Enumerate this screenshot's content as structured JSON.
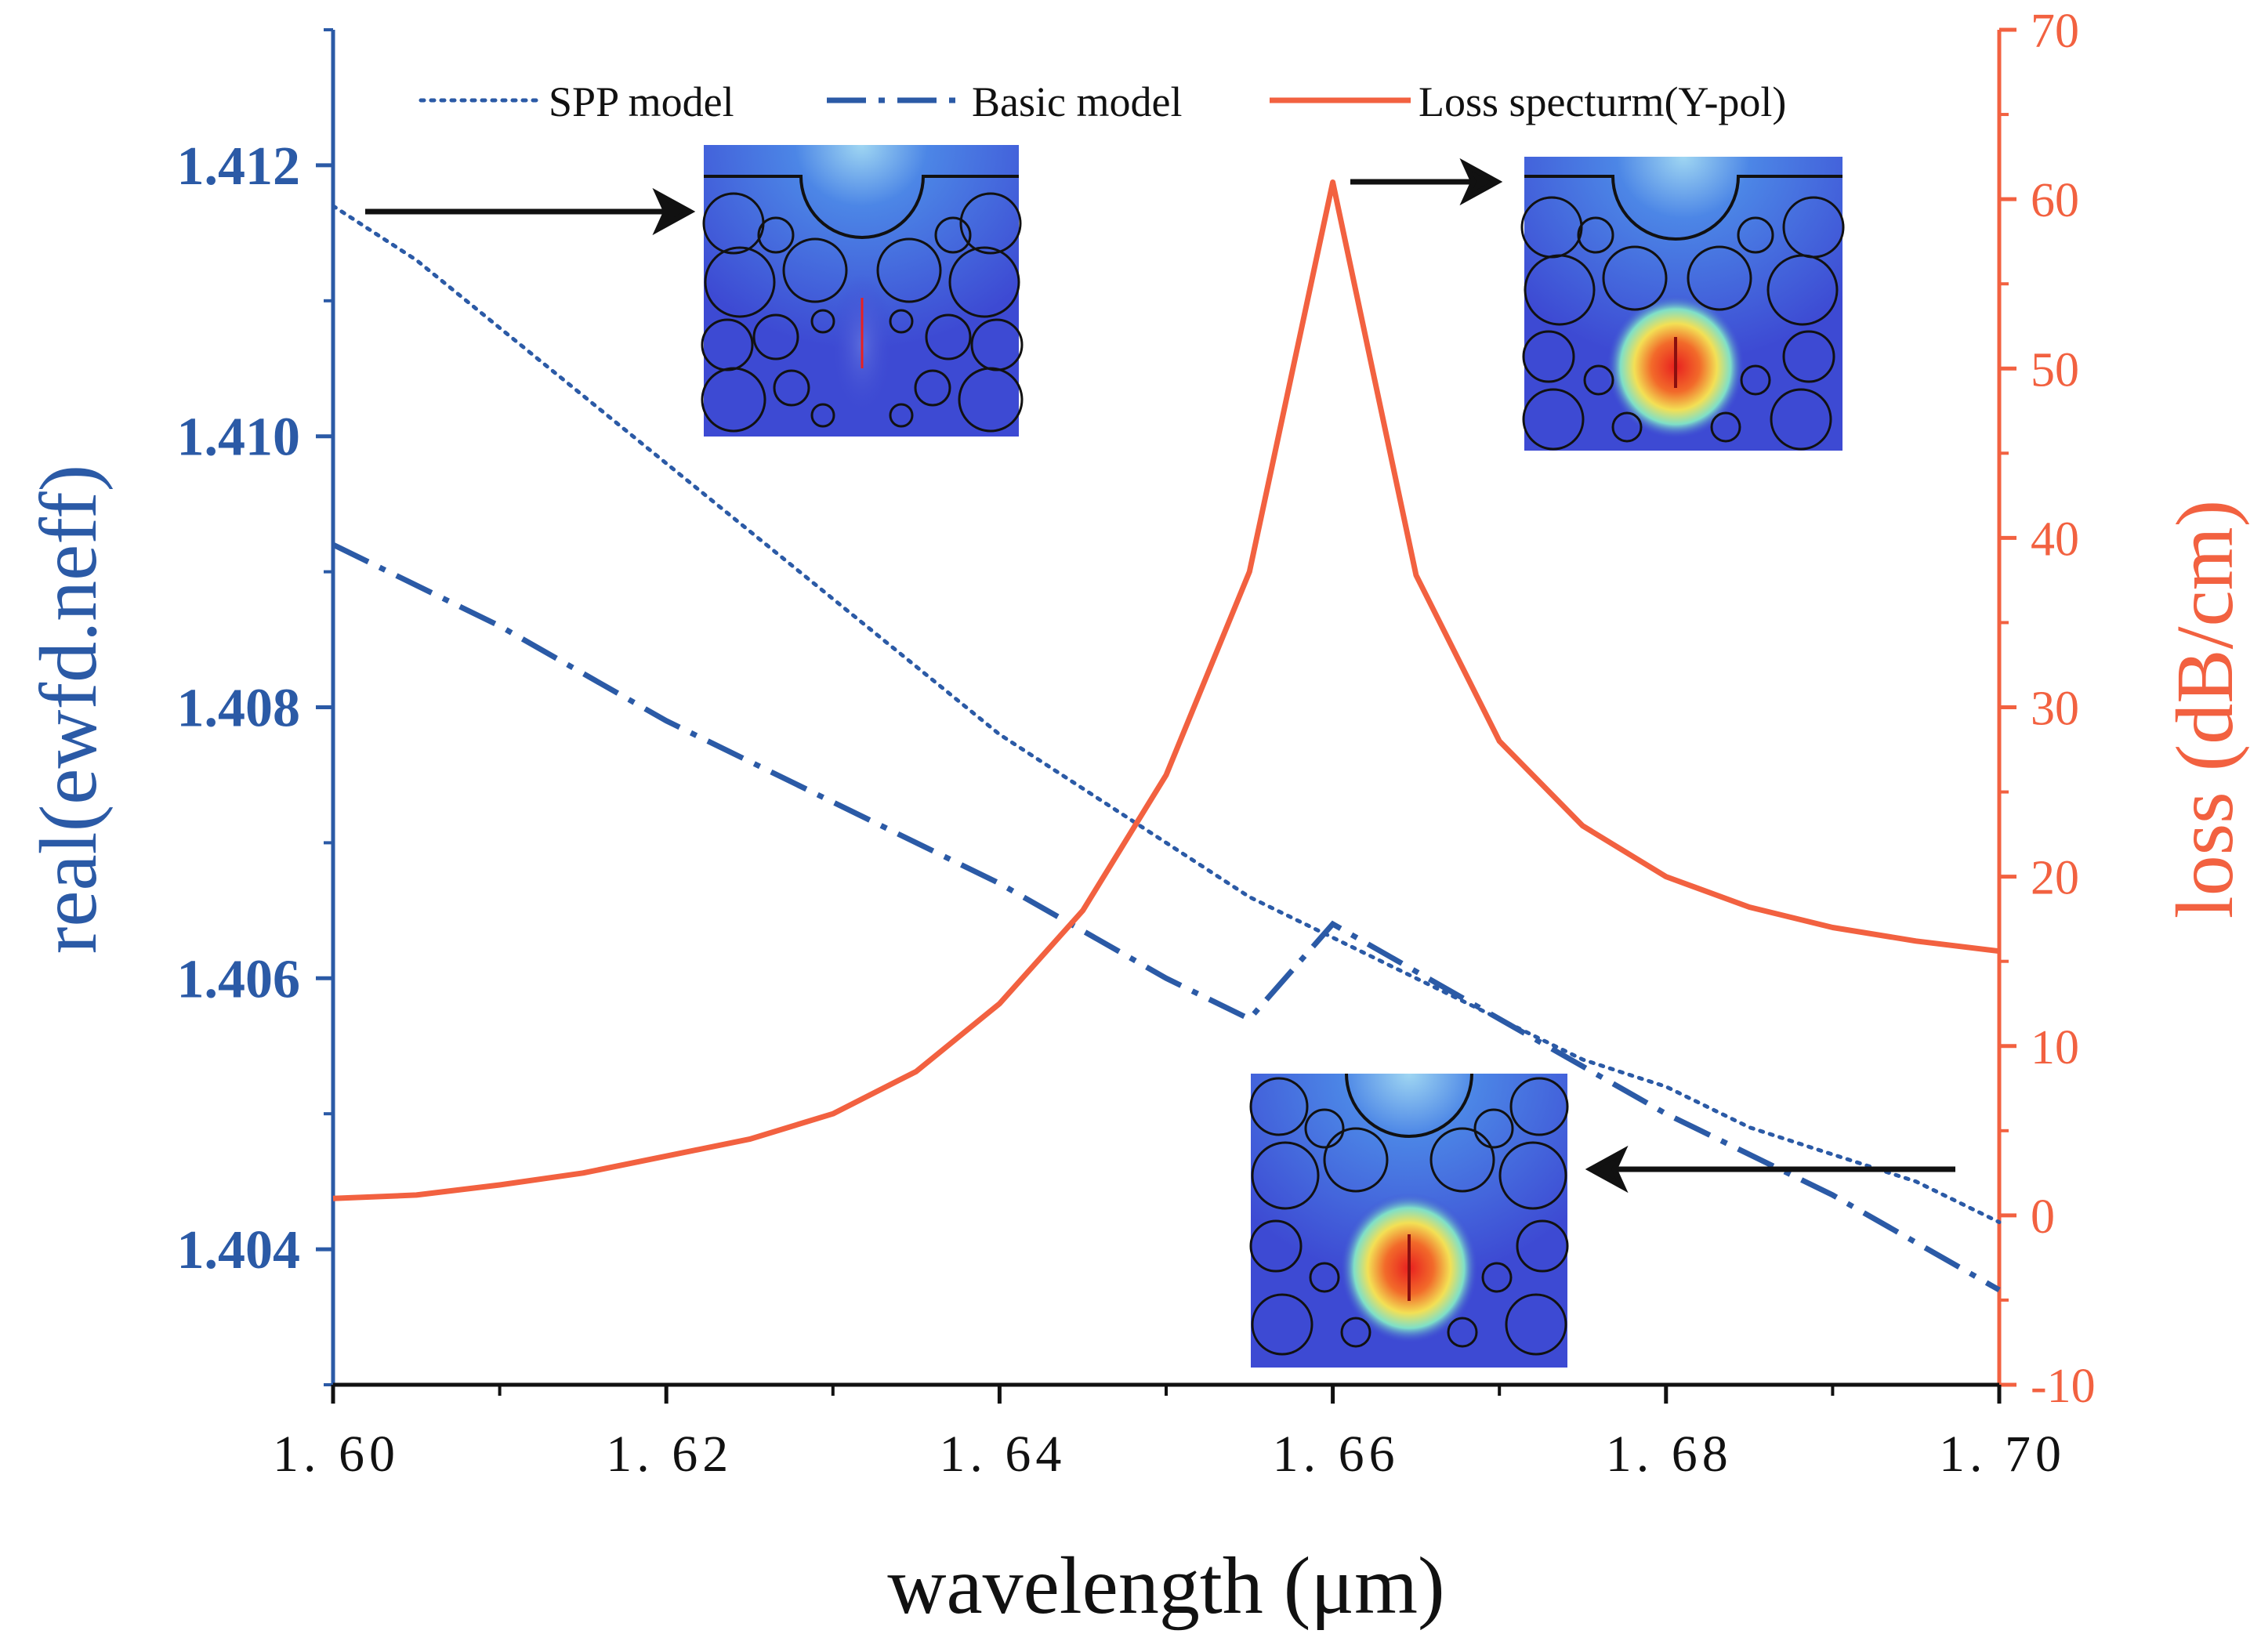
{
  "chart_data": {
    "type": "line",
    "title": "",
    "xlabel": "wavelength (μm)",
    "ylabel_left": "real(ewfd.neff)",
    "ylabel_right": "loss (dB/cm)",
    "xlim": [
      1.6,
      1.7
    ],
    "ylim_left": [
      1.403,
      1.413
    ],
    "ylim_right": [
      -10,
      70
    ],
    "x_ticks": [
      {
        "value": 1.6,
        "label": "1. 60"
      },
      {
        "value": 1.62,
        "label": "1. 62"
      },
      {
        "value": 1.64,
        "label": "1. 64"
      },
      {
        "value": 1.66,
        "label": "1. 66"
      },
      {
        "value": 1.68,
        "label": "1. 68"
      },
      {
        "value": 1.7,
        "label": "1. 70"
      }
    ],
    "y_left_ticks": [
      {
        "value": 1.404,
        "label": "1.404"
      },
      {
        "value": 1.406,
        "label": "1.406"
      },
      {
        "value": 1.408,
        "label": "1.408"
      },
      {
        "value": 1.41,
        "label": "1.410"
      },
      {
        "value": 1.412,
        "label": "1.412"
      }
    ],
    "y_right_ticks": [
      {
        "value": -10,
        "label": "-10"
      },
      {
        "value": 0,
        "label": "0"
      },
      {
        "value": 10,
        "label": "10"
      },
      {
        "value": 20,
        "label": "20"
      },
      {
        "value": 30,
        "label": "30"
      },
      {
        "value": 40,
        "label": "40"
      },
      {
        "value": 50,
        "label": "50"
      },
      {
        "value": 60,
        "label": "60"
      },
      {
        "value": 70,
        "label": "70"
      }
    ],
    "series": [
      {
        "name": "SPP model",
        "axis": "left",
        "style": "dotted",
        "color": "#2b5aa6",
        "x": [
          1.6,
          1.605,
          1.61,
          1.615,
          1.62,
          1.625,
          1.63,
          1.635,
          1.64,
          1.645,
          1.65,
          1.655,
          1.66,
          1.665,
          1.67,
          1.675,
          1.68,
          1.685,
          1.69,
          1.695,
          1.7
        ],
        "y": [
          1.4117,
          1.4113,
          1.4108,
          1.4103,
          1.4098,
          1.4093,
          1.4088,
          1.4083,
          1.4078,
          1.4074,
          1.407,
          1.4066,
          1.4063,
          1.406,
          1.4057,
          1.4054,
          1.4052,
          1.4049,
          1.4047,
          1.4045,
          1.4042
        ]
      },
      {
        "name": "Basic model",
        "axis": "left",
        "style": "dashdot",
        "color": "#2b5aa6",
        "x": [
          1.6,
          1.61,
          1.62,
          1.63,
          1.64,
          1.65,
          1.655,
          1.66,
          1.67,
          1.68,
          1.69,
          1.7
        ],
        "y": [
          1.4092,
          1.4086,
          1.4079,
          1.4073,
          1.4067,
          1.406,
          1.4057,
          1.4064,
          1.4057,
          1.405,
          1.4044,
          1.4037
        ]
      },
      {
        "name": "Loss specturm(Y-pol)",
        "axis": "right",
        "style": "solid",
        "color": "#f26140",
        "x": [
          1.6,
          1.605,
          1.61,
          1.615,
          1.62,
          1.625,
          1.63,
          1.635,
          1.64,
          1.645,
          1.65,
          1.655,
          1.66,
          1.665,
          1.67,
          1.675,
          1.68,
          1.685,
          1.69,
          1.695,
          1.7
        ],
        "y": [
          1.0,
          1.2,
          1.8,
          2.5,
          3.5,
          4.5,
          6.0,
          8.5,
          12.5,
          18.0,
          26.0,
          38.0,
          61.0,
          37.8,
          28.0,
          23.0,
          20.0,
          18.2,
          17.0,
          16.2,
          15.6
        ]
      }
    ],
    "legend_position": "top"
  }
}
